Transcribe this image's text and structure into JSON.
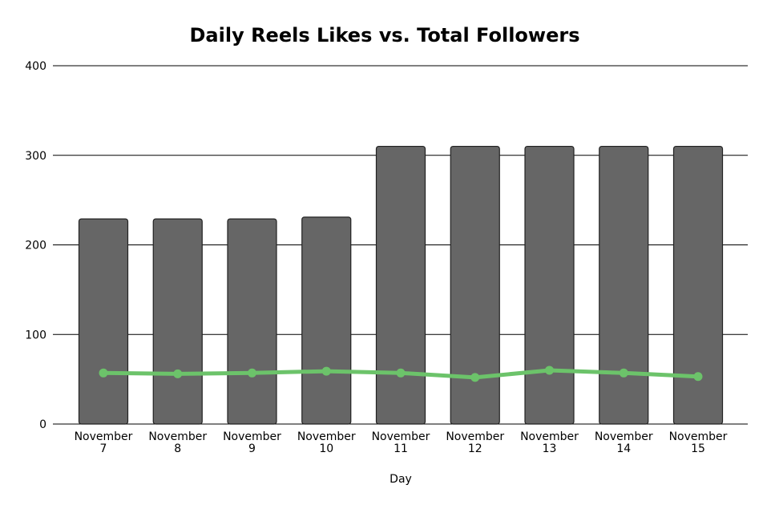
{
  "chart_data": {
    "type": "bar",
    "title": "Daily Reels Likes vs. Total Followers",
    "xlabel": "Day",
    "ylabel": "",
    "ylim": [
      0,
      400
    ],
    "yticks": [
      "0",
      "100",
      "200",
      "300",
      "400"
    ],
    "categories": [
      [
        "November",
        "7"
      ],
      [
        "November",
        "8"
      ],
      [
        "November",
        "9"
      ],
      [
        "November",
        "10"
      ],
      [
        "November",
        "11"
      ],
      [
        "November",
        "12"
      ],
      [
        "November",
        "13"
      ],
      [
        "November",
        "14"
      ],
      [
        "November",
        "15"
      ]
    ],
    "series": [
      {
        "type": "bar",
        "values": [
          229,
          229,
          229,
          231,
          310,
          310,
          310,
          310,
          310
        ],
        "color": "#666666"
      },
      {
        "type": "line",
        "values": [
          57,
          56,
          57,
          59,
          57,
          52,
          60,
          57,
          53
        ],
        "color": "#6cc36a"
      }
    ],
    "grid": true,
    "legend": "none"
  }
}
